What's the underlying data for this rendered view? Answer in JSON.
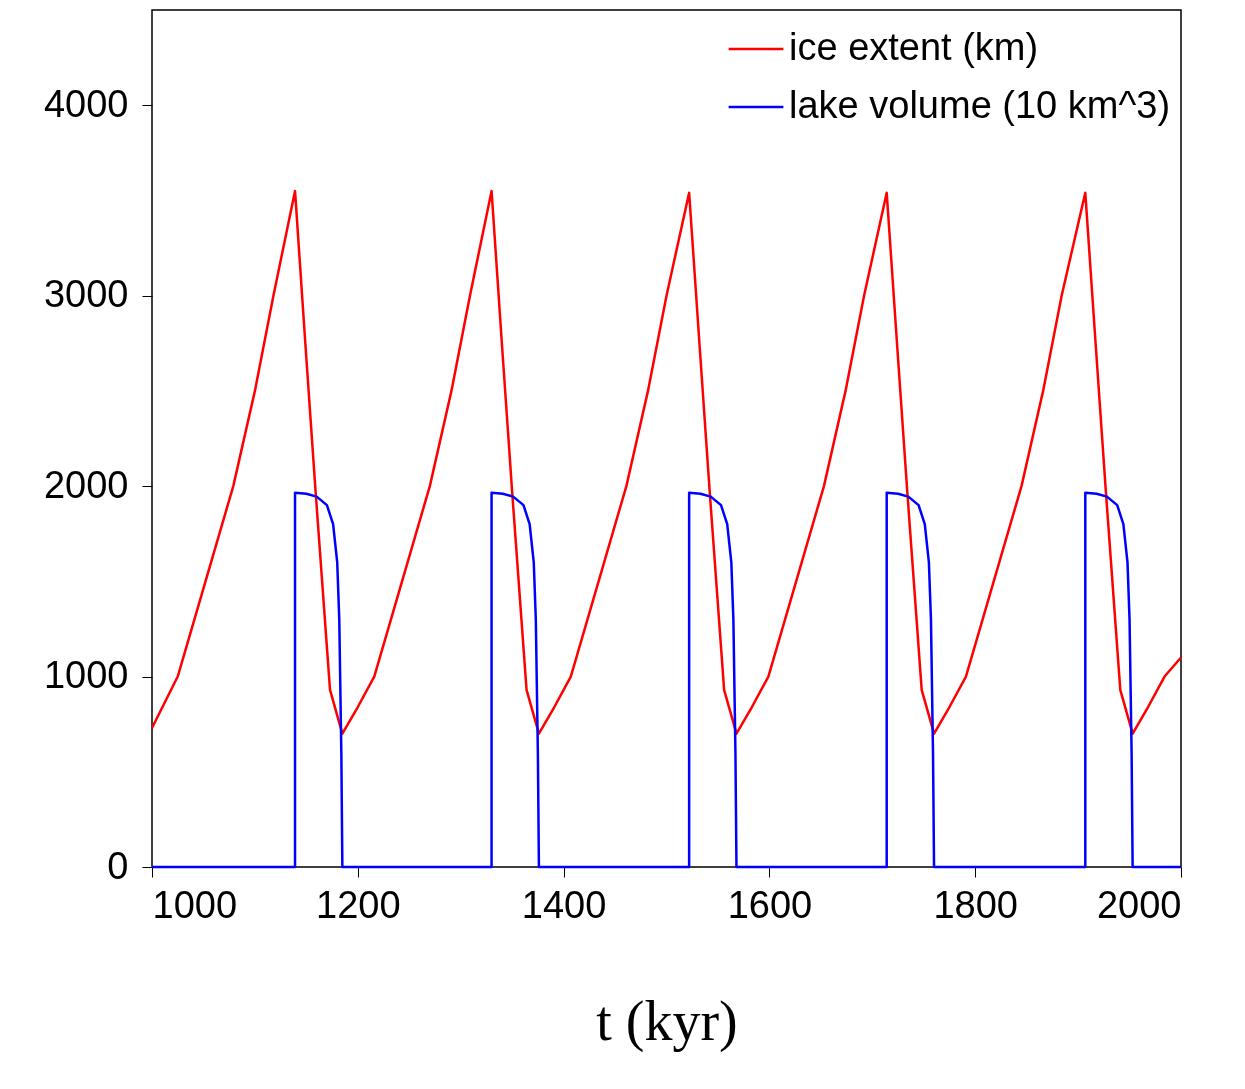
{
  "chart_data": {
    "type": "line",
    "xlabel": "t (kyr)",
    "xlim": [
      1000,
      2000
    ],
    "ylim": [
      0,
      4500
    ],
    "xticks": [
      1000,
      1200,
      1400,
      1600,
      1800,
      2000
    ],
    "yticks": [
      0,
      1000,
      2000,
      3000,
      4000
    ],
    "legend": "top right",
    "line_style": "solid",
    "series": [
      {
        "name": "ice extent (km)",
        "color": "#ff0000",
        "x": [
          1000,
          1025,
          1052,
          1079,
          1100,
          1118,
          1139,
          1149,
          1159,
          1173,
          1185,
          1200,
          1216,
          1243,
          1270,
          1291,
          1309,
          1330,
          1340,
          1350,
          1364,
          1376,
          1391,
          1407,
          1434,
          1461,
          1482,
          1500,
          1522,
          1532,
          1542,
          1556,
          1568,
          1583,
          1599,
          1626,
          1653,
          1674,
          1692,
          1714,
          1724,
          1734,
          1748,
          1760,
          1775,
          1791,
          1818,
          1845,
          1866,
          1884,
          1907,
          1917,
          1927,
          1941,
          1953,
          1968,
          1984,
          2000
        ],
        "values": [
          730,
          1000,
          1500,
          2000,
          2500,
          3000,
          3550,
          2750,
          1970,
          930,
          700,
          840,
          1000,
          1500,
          2000,
          2500,
          3000,
          3550,
          2750,
          1970,
          930,
          700,
          840,
          1000,
          1500,
          2000,
          2500,
          3000,
          3540,
          2750,
          1970,
          930,
          700,
          840,
          1000,
          1500,
          2000,
          2500,
          3000,
          3540,
          2750,
          1970,
          930,
          700,
          840,
          1000,
          1500,
          2000,
          2500,
          3000,
          3540,
          2750,
          1970,
          930,
          700,
          840,
          1000,
          1100
        ]
      },
      {
        "name": "lake volume (10 km^3)",
        "color": "#0000ff",
        "x": [
          1000,
          1139,
          1139,
          1150,
          1160,
          1170,
          1176,
          1180,
          1182,
          1184,
          1185,
          1330,
          1330,
          1341,
          1351,
          1361,
          1367,
          1371,
          1373,
          1375,
          1376,
          1522,
          1522,
          1533,
          1543,
          1553,
          1559,
          1563,
          1565,
          1567,
          1568,
          1714,
          1714,
          1725,
          1735,
          1745,
          1751,
          1755,
          1757,
          1759,
          1760,
          1907,
          1907,
          1918,
          1928,
          1938,
          1944,
          1948,
          1950,
          1952,
          1953,
          2000
        ],
        "values": [
          0,
          0,
          1965,
          1960,
          1945,
          1900,
          1800,
          1600,
          1300,
          600,
          0,
          0,
          1965,
          1960,
          1945,
          1900,
          1800,
          1600,
          1300,
          600,
          0,
          0,
          1965,
          1960,
          1945,
          1900,
          1800,
          1600,
          1300,
          600,
          0,
          0,
          1965,
          1960,
          1945,
          1900,
          1800,
          1600,
          1300,
          600,
          0,
          0,
          1965,
          1960,
          1945,
          1900,
          1800,
          1600,
          1300,
          600,
          0,
          0
        ]
      }
    ]
  }
}
